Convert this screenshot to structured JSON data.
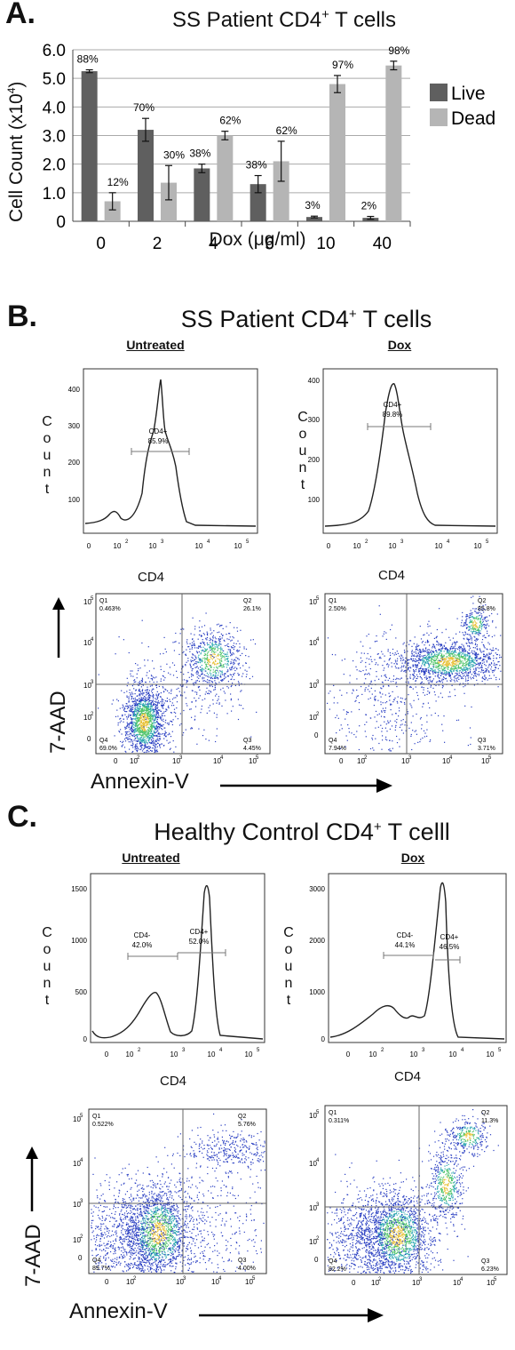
{
  "panelA": {
    "letter": "A.",
    "title_main": "SS Patient CD4",
    "title_sup": "+",
    "title_tail": " T cells",
    "ylabel": "Cell Count (x10",
    "ylabel_sup": "4",
    "ylabel_tail": ")",
    "xlabel": "Dox (μg/ml)",
    "colors": {
      "live": "#5f5f5f",
      "dead": "#b5b5b5"
    }
  },
  "chart_data": {
    "type": "bar",
    "title": "SS Patient CD4+ T cells",
    "xlabel": "Dox (μg/ml)",
    "ylabel": "Cell Count (x10^4)",
    "ylim": [
      0,
      6.0
    ],
    "yticks": [
      "0",
      "1.0",
      "2.0",
      "3.0",
      "4.0",
      "5.0",
      "6.0"
    ],
    "categories": [
      "0",
      "2",
      "4",
      "6",
      "10",
      "40"
    ],
    "legend_position": "right",
    "grid": true,
    "series": [
      {
        "name": "Live",
        "color": "#5f5f5f",
        "values": [
          5.25,
          3.2,
          1.85,
          1.3,
          0.15,
          0.12
        ],
        "errors": [
          0.05,
          0.4,
          0.15,
          0.3,
          0.03,
          0.05
        ],
        "labels": [
          "88%",
          "70%",
          "38%",
          "38%",
          "3%",
          "2%"
        ]
      },
      {
        "name": "Dead",
        "color": "#b5b5b5",
        "values": [
          0.7,
          1.35,
          3.0,
          2.1,
          4.8,
          5.45
        ],
        "errors": [
          0.3,
          0.6,
          0.15,
          0.7,
          0.3,
          0.15
        ],
        "labels": [
          "12%",
          "30%",
          "62%",
          "62%",
          "97%",
          "98%"
        ]
      }
    ]
  },
  "panelB": {
    "letter": "B.",
    "title_main": "SS Patient CD4",
    "title_sup": "+",
    "title_tail": " T cells",
    "untreated_label": "Untreated",
    "dox_label": "Dox",
    "count_letters": [
      "C",
      "o",
      "u",
      "n",
      "t"
    ],
    "x_axis_label": "CD4",
    "yaxis_label": "7-AAD",
    "xaxis_label": "Annexin-V",
    "hist_untreated": {
      "yticks": [
        "400",
        "300",
        "200",
        "100"
      ],
      "gate_name": "CD4+",
      "gate_value": "85.9%"
    },
    "hist_dox": {
      "yticks": [
        "400",
        "300",
        "200",
        "100"
      ],
      "gate_name": "CD4+",
      "gate_value": "89.8%"
    },
    "dot_untreated": {
      "q1": [
        "Q1",
        "0.463%"
      ],
      "q2": [
        "Q2",
        "26.1%"
      ],
      "q3": [
        "Q3",
        "4.45%"
      ],
      "q4": [
        "Q4",
        "69.0%"
      ]
    },
    "dot_dox": {
      "q1": [
        "Q1",
        "2.50%"
      ],
      "q2": [
        "Q2",
        "85.8%"
      ],
      "q3": [
        "Q3",
        "3.71%"
      ],
      "q4": [
        "Q4",
        "7.94%"
      ]
    }
  },
  "panelC": {
    "letter": "C.",
    "title_main": "Healthy Control CD4",
    "title_sup": "+",
    "title_tail": " T celll",
    "untreated_label": "Untreated",
    "dox_label": "Dox",
    "count_letters": [
      "C",
      "o",
      "u",
      "n",
      "t"
    ],
    "x_axis_label": "CD4",
    "yaxis_label": "7-AAD",
    "xaxis_label": "Annexin-V",
    "hist_untreated": {
      "yticks": [
        "1500",
        "1000",
        "500",
        "0"
      ],
      "gate_neg_name": "CD4-",
      "gate_neg_value": "42.0%",
      "gate_pos_name": "CD4+",
      "gate_pos_value": "52.0%"
    },
    "hist_dox": {
      "yticks": [
        "3000",
        "2000",
        "1000",
        "0"
      ],
      "gate_neg_name": "CD4-",
      "gate_neg_value": "44.1%",
      "gate_pos_name": "CD4+",
      "gate_pos_value": "46.5%"
    },
    "dot_untreated": {
      "q1": [
        "Q1",
        "0.522%"
      ],
      "q2": [
        "Q2",
        "5.76%"
      ],
      "q3": [
        "Q3",
        "4.00%"
      ],
      "q4": [
        "Q4",
        "89.7%"
      ]
    },
    "dot_dox": {
      "q1": [
        "Q1",
        "0.311%"
      ],
      "q2": [
        "Q2",
        "11.3%"
      ],
      "q3": [
        "Q3",
        "6.23%"
      ],
      "q4": [
        "Q4",
        "82.2%"
      ]
    }
  },
  "flow_xticks": [
    "0",
    "10",
    "2",
    "10",
    "3",
    "10",
    "4",
    "10",
    "5"
  ],
  "flow_yticks": [
    "10",
    "5",
    "10",
    "4",
    "10",
    "3",
    "10",
    "2",
    "0"
  ]
}
